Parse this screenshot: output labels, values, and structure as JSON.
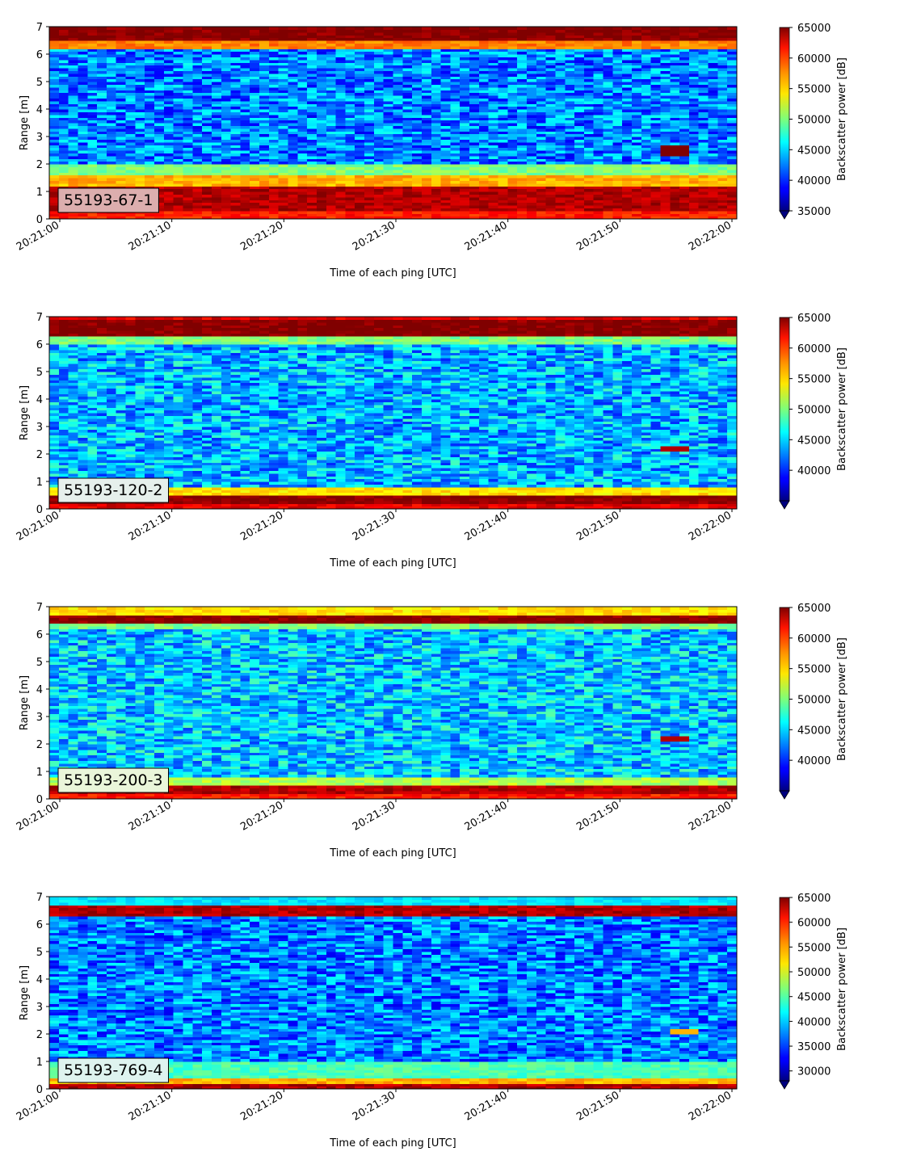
{
  "chart_data": [
    {
      "type": "heatmap",
      "label": "55193-67-1",
      "label_bg": "#dcaeae",
      "xlabel": "Time of each ping [UTC]",
      "ylabel": "Range [m]",
      "x_range": [
        "20:21:00",
        "20:22:00"
      ],
      "x_ticks": [
        "20:21:00",
        "20:21:10",
        "20:21:20",
        "20:21:30",
        "20:21:40",
        "20:21:50",
        "20:22:00"
      ],
      "ylim": [
        0,
        7
      ],
      "y_ticks": [
        "0",
        "1",
        "2",
        "3",
        "4",
        "5",
        "6",
        "7"
      ],
      "colorbar": {
        "label": "Backscatter power [dB]",
        "min": 35000,
        "max": 65000,
        "ticks": [
          "35000",
          "40000",
          "45000",
          "50000",
          "55000",
          "60000",
          "65000"
        ],
        "extend": "min",
        "colormap": "jet"
      },
      "bands": [
        {
          "from": 6.55,
          "to": 7.0,
          "level": 1.0
        },
        {
          "from": 6.2,
          "to": 6.55,
          "level": 0.75
        },
        {
          "from": 1.6,
          "to": 2.0,
          "level": 0.5
        },
        {
          "from": 1.2,
          "to": 1.6,
          "level": 0.7
        },
        {
          "from": 0.3,
          "to": 1.2,
          "level": 0.95
        },
        {
          "from": 0.0,
          "to": 0.3,
          "level": 0.85
        }
      ],
      "background_level": 0.25,
      "blobs": [
        {
          "t": 55,
          "from": 2.3,
          "to": 2.7,
          "level": 1.0
        }
      ]
    },
    {
      "type": "heatmap",
      "label": "55193-120-2",
      "label_bg": "#e6f0ec",
      "xlabel": "Time of each ping [UTC]",
      "ylabel": "Range [m]",
      "x_range": [
        "20:21:00",
        "20:22:00"
      ],
      "x_ticks": [
        "20:21:00",
        "20:21:10",
        "20:21:20",
        "20:21:30",
        "20:21:40",
        "20:21:50",
        "20:22:00"
      ],
      "ylim": [
        0,
        7
      ],
      "y_ticks": [
        "0",
        "1",
        "2",
        "3",
        "4",
        "5",
        "6",
        "7"
      ],
      "colorbar": {
        "label": "Backscatter power [dB]",
        "min": 35000,
        "max": 65000,
        "ticks": [
          "40000",
          "45000",
          "50000",
          "55000",
          "60000",
          "65000"
        ],
        "extend": "min",
        "colormap": "jet"
      },
      "bands": [
        {
          "from": 6.9,
          "to": 7.0,
          "level": 0.9
        },
        {
          "from": 6.3,
          "to": 6.9,
          "level": 1.0
        },
        {
          "from": 6.0,
          "to": 6.3,
          "level": 0.5
        },
        {
          "from": 0.55,
          "to": 0.8,
          "level": 0.65
        },
        {
          "from": 0.2,
          "to": 0.55,
          "level": 1.0
        },
        {
          "from": 0.0,
          "to": 0.2,
          "level": 0.9
        }
      ],
      "background_level": 0.3,
      "blobs": [
        {
          "t": 55,
          "from": 2.1,
          "to": 2.35,
          "level": 0.95
        }
      ]
    },
    {
      "type": "heatmap",
      "label": "55193-200-3",
      "label_bg": "#eaf6da",
      "xlabel": "Time of each ping [UTC]",
      "ylabel": "Range [m]",
      "x_range": [
        "20:21:00",
        "20:22:00"
      ],
      "x_ticks": [
        "20:21:00",
        "20:21:10",
        "20:21:20",
        "20:21:30",
        "20:21:40",
        "20:21:50",
        "20:22:00"
      ],
      "ylim": [
        0,
        7
      ],
      "y_ticks": [
        "0",
        "1",
        "2",
        "3",
        "4",
        "5",
        "6",
        "7"
      ],
      "colorbar": {
        "label": "Backscatter power [dB]",
        "min": 35000,
        "max": 65000,
        "ticks": [
          "40000",
          "45000",
          "50000",
          "55000",
          "60000",
          "65000"
        ],
        "extend": "min",
        "colormap": "jet"
      },
      "bands": [
        {
          "from": 6.75,
          "to": 7.0,
          "level": 0.65
        },
        {
          "from": 6.4,
          "to": 6.75,
          "level": 1.0
        },
        {
          "from": 6.2,
          "to": 6.4,
          "level": 0.5
        },
        {
          "from": 0.5,
          "to": 0.8,
          "level": 0.55
        },
        {
          "from": 0.25,
          "to": 0.5,
          "level": 0.95
        },
        {
          "from": 0.0,
          "to": 0.25,
          "level": 0.85
        }
      ],
      "background_level": 0.32,
      "blobs": [
        {
          "t": 55,
          "from": 2.1,
          "to": 2.3,
          "level": 0.95
        }
      ]
    },
    {
      "type": "heatmap",
      "label": "55193-769-4",
      "label_bg": "#def3ef",
      "xlabel": "Time of each ping [UTC]",
      "ylabel": "Range [m]",
      "x_range": [
        "20:21:00",
        "20:22:00"
      ],
      "x_ticks": [
        "20:21:00",
        "20:21:10",
        "20:21:20",
        "20:21:30",
        "20:21:40",
        "20:21:50",
        "20:22:00"
      ],
      "ylim": [
        0,
        7
      ],
      "y_ticks": [
        "0",
        "1",
        "2",
        "3",
        "4",
        "5",
        "6",
        "7"
      ],
      "colorbar": {
        "label": "Backscatter power [dB]",
        "min": 28000,
        "max": 65000,
        "ticks": [
          "30000",
          "35000",
          "40000",
          "45000",
          "50000",
          "55000",
          "60000",
          "65000"
        ],
        "extend": "min",
        "colormap": "jet"
      },
      "bands": [
        {
          "from": 6.7,
          "to": 7.0,
          "level": 0.35
        },
        {
          "from": 6.3,
          "to": 6.7,
          "level": 0.95
        },
        {
          "from": 0.4,
          "to": 1.0,
          "level": 0.45
        },
        {
          "from": 0.2,
          "to": 0.4,
          "level": 0.7
        },
        {
          "from": 0.0,
          "to": 0.2,
          "level": 0.95
        }
      ],
      "background_level": 0.25,
      "blobs": [
        {
          "t": 56,
          "from": 2.0,
          "to": 2.2,
          "level": 0.7
        }
      ]
    }
  ]
}
